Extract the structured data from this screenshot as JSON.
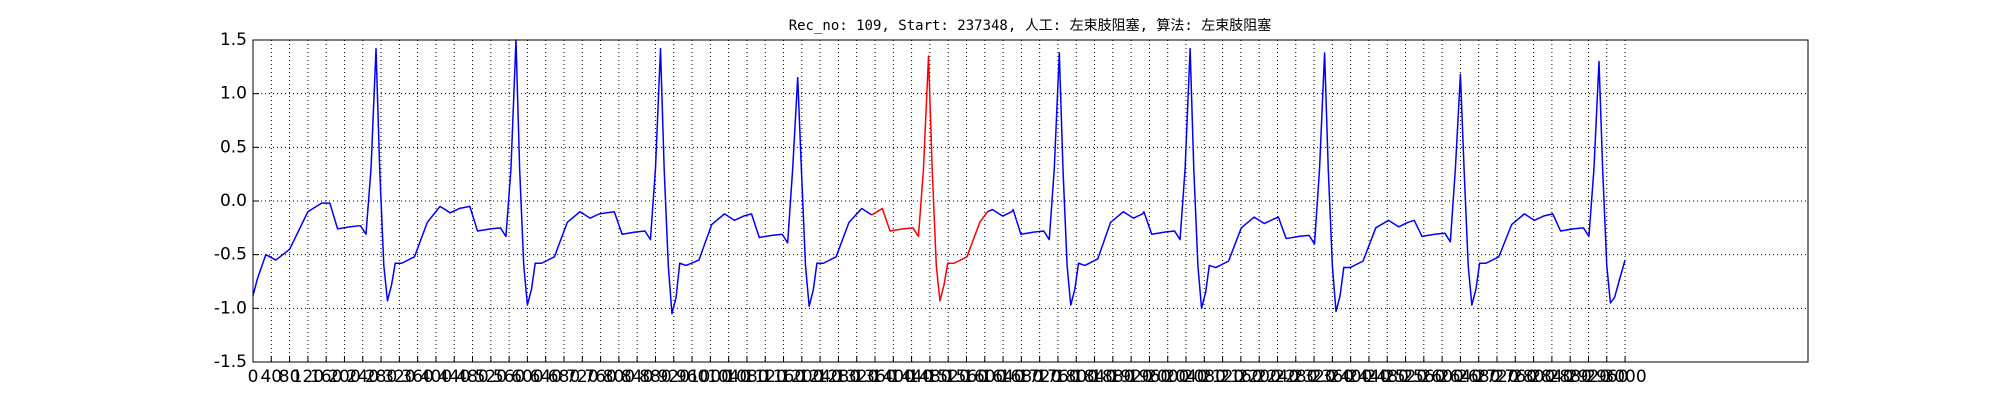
{
  "chart_data": {
    "type": "line",
    "title": "Rec_no: 109, Start: 237348, 人工: 左束肢阻塞, 算法: 左束肢阻塞",
    "xlim": [
      0,
      3400
    ],
    "xticks": [
      0,
      40,
      80,
      120,
      160,
      200,
      240,
      280,
      320,
      360,
      400,
      440,
      480,
      520,
      560,
      600,
      640,
      680,
      720,
      760,
      800,
      840,
      880,
      920,
      960,
      1000,
      1040,
      1080,
      1120,
      1160,
      1200,
      1240,
      1280,
      1320,
      1360,
      1400,
      1440,
      1480,
      1520,
      1560,
      1600,
      1640,
      1680,
      1720,
      1760,
      1800,
      1840,
      1880,
      1920,
      1960,
      2000,
      2040,
      2080,
      2120,
      2160,
      2200,
      2240,
      2280,
      2320,
      2360,
      2400,
      2440,
      2480,
      2520,
      2560,
      2600,
      2640,
      2680,
      2720,
      2760,
      2800,
      2840,
      2880,
      2920,
      2960,
      3000
    ],
    "ylim": [
      -1.5,
      1.5
    ],
    "yticks": [
      -1.5,
      {
        "value": -1,
        "label": "-1.0"
      },
      -0.5,
      {
        "value": 0,
        "label": "0.0"
      },
      0.5,
      {
        "value": 1,
        "label": "1.0"
      },
      1.5
    ],
    "grid": true,
    "series": [
      {
        "color": "#0000ff",
        "x": [
          0,
          10,
          28,
          50,
          80,
          120,
          150,
          168,
          185,
          213,
          235,
          247,
          258,
          269,
          277,
          286,
          294,
          303,
          311,
          325,
          353,
          381,
          409,
          431,
          451,
          474,
          491,
          519,
          541,
          553,
          564,
          575,
          583,
          592,
          600,
          609,
          617,
          631,
          659,
          687,
          715,
          737,
          757,
          790,
          807,
          835,
          857,
          869,
          880,
          891,
          899,
          908,
          916,
          925,
          933,
          947,
          975,
          1003,
          1031,
          1053,
          1073,
          1090,
          1107,
          1135,
          1157,
          1169,
          1180,
          1191,
          1199,
          1208,
          1216,
          1225,
          1233,
          1247,
          1275,
          1303,
          1331,
          1353
        ],
        "values": [
          -0.88,
          -0.72,
          -0.5,
          -0.55,
          -0.45,
          -0.1,
          -0.02,
          -0.02,
          -0.26,
          -0.24,
          -0.23,
          -0.31,
          0.3,
          1.42,
          0.3,
          -0.6,
          -0.93,
          -0.78,
          -0.58,
          -0.58,
          -0.52,
          -0.2,
          -0.05,
          -0.11,
          -0.07,
          -0.05,
          -0.28,
          -0.26,
          -0.25,
          -0.33,
          0.3,
          1.5,
          0.3,
          -0.6,
          -0.97,
          -0.82,
          -0.58,
          -0.58,
          -0.52,
          -0.2,
          -0.1,
          -0.16,
          -0.12,
          -0.1,
          -0.31,
          -0.29,
          -0.28,
          -0.36,
          0.3,
          1.42,
          0.3,
          -0.6,
          -1.05,
          -0.9,
          -0.58,
          -0.6,
          -0.55,
          -0.22,
          -0.12,
          -0.18,
          -0.14,
          -0.12,
          -0.34,
          -0.32,
          -0.31,
          -0.39,
          0.3,
          1.15,
          0.3,
          -0.6,
          -0.98,
          -0.83,
          -0.58,
          -0.58,
          -0.52,
          -0.2,
          -0.07,
          -0.13
        ]
      },
      {
        "color": "#ff0000",
        "x": [
          1353,
          1376,
          1393,
          1421,
          1443,
          1455,
          1466,
          1477,
          1485,
          1494,
          1502,
          1511,
          1519,
          1533,
          1561,
          1589,
          1606
        ],
        "values": [
          -0.13,
          -0.07,
          -0.28,
          -0.26,
          -0.25,
          -0.33,
          0.3,
          1.35,
          0.3,
          -0.6,
          -0.93,
          -0.78,
          -0.58,
          -0.58,
          -0.52,
          -0.2,
          -0.1
        ]
      },
      {
        "color": "#0000ff",
        "x": [
          1606,
          1617,
          1639,
          1659,
          1662,
          1679,
          1707,
          1729,
          1741,
          1752,
          1763,
          1771,
          1780,
          1788,
          1797,
          1805,
          1819,
          1847,
          1875,
          1903,
          1925,
          1945,
          1948,
          1965,
          1993,
          2015,
          2027,
          2038,
          2049,
          2057,
          2066,
          2074,
          2083,
          2091,
          2105,
          2133,
          2161,
          2189,
          2211,
          2231,
          2242,
          2259,
          2287,
          2309,
          2321,
          2332,
          2343,
          2351,
          2360,
          2368,
          2377,
          2385,
          2399,
          2427,
          2455,
          2483,
          2505,
          2525,
          2539,
          2556,
          2584,
          2606,
          2618,
          2629,
          2640,
          2648,
          2657,
          2665,
          2674,
          2682,
          2696,
          2724,
          2752,
          2780,
          2802,
          2822,
          2842,
          2859,
          2887,
          2909,
          2921,
          2932,
          2943,
          2951,
          2960,
          2968,
          2977,
          2990,
          3000
        ],
        "values": [
          -0.1,
          -0.08,
          -0.14,
          -0.1,
          -0.08,
          -0.31,
          -0.29,
          -0.28,
          -0.36,
          0.3,
          1.38,
          0.3,
          -0.6,
          -0.97,
          -0.82,
          -0.58,
          -0.6,
          -0.54,
          -0.2,
          -0.1,
          -0.16,
          -0.12,
          -0.1,
          -0.31,
          -0.29,
          -0.28,
          -0.36,
          0.3,
          1.42,
          0.3,
          -0.6,
          -1.0,
          -0.85,
          -0.6,
          -0.62,
          -0.56,
          -0.25,
          -0.15,
          -0.21,
          -0.17,
          -0.15,
          -0.35,
          -0.33,
          -0.32,
          -0.4,
          0.3,
          1.38,
          0.3,
          -0.6,
          -1.03,
          -0.88,
          -0.62,
          -0.62,
          -0.56,
          -0.25,
          -0.18,
          -0.24,
          -0.2,
          -0.18,
          -0.33,
          -0.31,
          -0.3,
          -0.38,
          0.3,
          1.18,
          0.3,
          -0.6,
          -0.97,
          -0.82,
          -0.58,
          -0.58,
          -0.52,
          -0.22,
          -0.12,
          -0.18,
          -0.14,
          -0.12,
          -0.28,
          -0.26,
          -0.25,
          -0.33,
          0.3,
          1.3,
          0.3,
          -0.6,
          -0.95,
          -0.9,
          -0.7,
          -0.55
        ]
      }
    ]
  }
}
